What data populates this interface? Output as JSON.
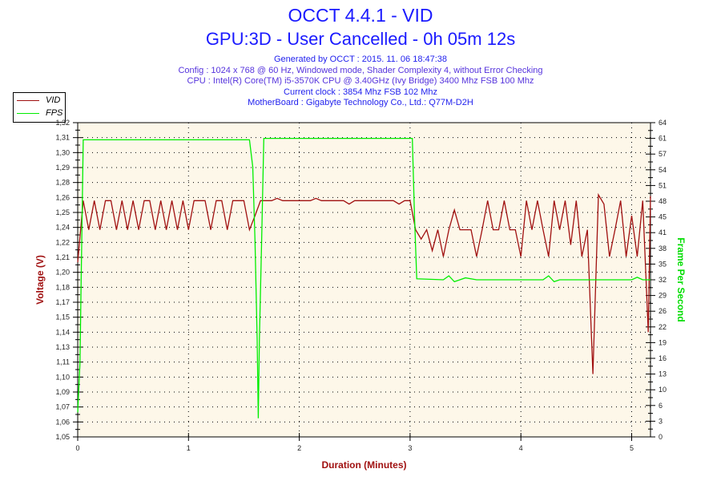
{
  "title": "OCCT 4.4.1 - VID",
  "subtitle": "GPU:3D - User Cancelled - 0h 05m 12s",
  "info": [
    "Generated by OCCT : 2015. 11. 06 18:47:38",
    "Config : 1024 x 768 @ 60 Hz, Windowed mode, Shader Complexity 4, without Error Checking",
    "CPU : Intel(R) Core(TM) i5-3570K CPU @ 3.40GHz (Ivy Bridge) 3400 Mhz FSB 100 Mhz",
    "Current clock : 3854 Mhz FSB 102 Mhz",
    "MotherBoard : Gigabyte Technology Co., Ltd.: Q77M-D2H"
  ],
  "chart_data": {
    "type": "line",
    "xlabel": "Duration (Minutes)",
    "ylabel": "Voltage (V)",
    "y2label": "Frame Per Second",
    "xlim": [
      0,
      5.17
    ],
    "ylim": [
      1.05,
      1.32
    ],
    "y2lim": [
      0,
      64
    ],
    "xticks": [
      "0",
      "1",
      "2",
      "3",
      "4",
      "5"
    ],
    "yticks": [
      "1,05",
      "1,06",
      "1,07",
      "1,09",
      "1,10",
      "1,11",
      "1,13",
      "1,14",
      "1,15",
      "1,17",
      "1,18",
      "1,20",
      "1,21",
      "1,22",
      "1,24",
      "1,25",
      "1,26",
      "1,28",
      "1,29",
      "1,30",
      "1,31",
      "1,32"
    ],
    "y2ticks": [
      "0",
      "3",
      "6",
      "10",
      "13",
      "16",
      "19",
      "22",
      "26",
      "29",
      "32",
      "35",
      "38",
      "41",
      "45",
      "48",
      "51",
      "54",
      "57",
      "61",
      "64"
    ],
    "grid": true,
    "legend": "top-left",
    "series": [
      {
        "name": "VID",
        "color": "#a01010",
        "axis": "left",
        "x_step": 0.05,
        "values": [
          1.2,
          1.253,
          1.228,
          1.253,
          1.228,
          1.253,
          1.253,
          1.228,
          1.253,
          1.228,
          1.253,
          1.228,
          1.253,
          1.253,
          1.228,
          1.253,
          1.228,
          1.253,
          1.228,
          1.253,
          1.228,
          1.253,
          1.253,
          1.253,
          1.228,
          1.253,
          1.253,
          1.228,
          1.253,
          1.253,
          1.253,
          1.228,
          1.24,
          1.253,
          1.253,
          1.253,
          1.255,
          1.253,
          1.253,
          1.253,
          1.253,
          1.253,
          1.253,
          1.255,
          1.253,
          1.253,
          1.253,
          1.253,
          1.253,
          1.25,
          1.253,
          1.253,
          1.253,
          1.253,
          1.253,
          1.253,
          1.253,
          1.253,
          1.25,
          1.253,
          1.253,
          1.228,
          1.22,
          1.228,
          1.21,
          1.228,
          1.205,
          1.228,
          1.245,
          1.228,
          1.228,
          1.228,
          1.205,
          1.228,
          1.253,
          1.228,
          1.228,
          1.253,
          1.228,
          1.228,
          1.205,
          1.253,
          1.228,
          1.253,
          1.228,
          1.205,
          1.253,
          1.228,
          1.253,
          1.215,
          1.253,
          1.205,
          1.228,
          1.104,
          1.258,
          1.25,
          1.205,
          1.228,
          1.253,
          1.205,
          1.24,
          1.205,
          1.253,
          1.14,
          1.257
        ]
      },
      {
        "name": "FPS",
        "color": "#00ee00",
        "axis": "right",
        "points": [
          [
            0,
            5
          ],
          [
            0.02,
            15
          ],
          [
            0.04,
            45
          ],
          [
            0.05,
            60.5
          ],
          [
            1.55,
            60.5
          ],
          [
            1.58,
            55
          ],
          [
            1.6,
            40
          ],
          [
            1.62,
            20
          ],
          [
            1.63,
            3.8
          ],
          [
            1.64,
            20
          ],
          [
            1.66,
            40
          ],
          [
            1.68,
            60.8
          ],
          [
            3.02,
            60.8
          ],
          [
            3.04,
            45
          ],
          [
            3.06,
            32.2
          ],
          [
            3.3,
            32
          ],
          [
            3.35,
            32.8
          ],
          [
            3.4,
            31.6
          ],
          [
            3.5,
            32.4
          ],
          [
            3.6,
            32
          ],
          [
            4.2,
            32
          ],
          [
            4.25,
            32.8
          ],
          [
            4.3,
            31.6
          ],
          [
            4.35,
            32
          ],
          [
            5.0,
            32
          ],
          [
            5.05,
            32.5
          ],
          [
            5.1,
            32
          ],
          [
            5.17,
            32
          ]
        ]
      }
    ]
  }
}
